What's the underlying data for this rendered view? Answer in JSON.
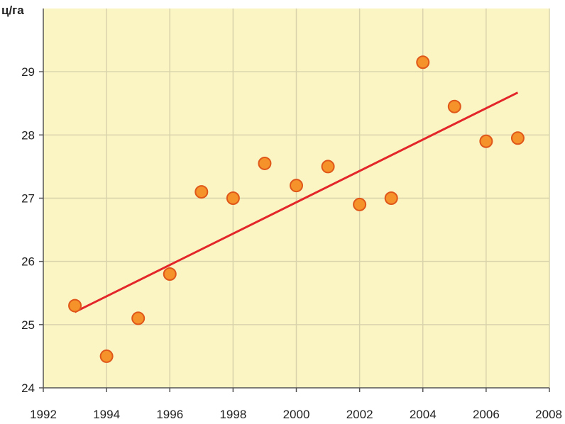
{
  "chart_data": {
    "type": "scatter",
    "title": "",
    "ylabel": "ц/га",
    "xlabel": "",
    "xlim": [
      1992,
      2008
    ],
    "ylim": [
      24,
      30
    ],
    "x_ticks": [
      1992,
      1994,
      1996,
      1998,
      2000,
      2002,
      2004,
      2006,
      2008
    ],
    "y_ticks": [
      24,
      25,
      26,
      27,
      28,
      29
    ],
    "grid": true,
    "series": [
      {
        "points": [
          {
            "x": 1993,
            "y": 25.3
          },
          {
            "x": 1994,
            "y": 24.5
          },
          {
            "x": 1995,
            "y": 25.1
          },
          {
            "x": 1996,
            "y": 25.8
          },
          {
            "x": 1997,
            "y": 27.1
          },
          {
            "x": 1998,
            "y": 27.0
          },
          {
            "x": 1999,
            "y": 27.55
          },
          {
            "x": 2000,
            "y": 27.2
          },
          {
            "x": 2001,
            "y": 27.5
          },
          {
            "x": 2002,
            "y": 26.9
          },
          {
            "x": 2003,
            "y": 27.0
          },
          {
            "x": 2004,
            "y": 29.15
          },
          {
            "x": 2005,
            "y": 28.45
          },
          {
            "x": 2006,
            "y": 27.9
          },
          {
            "x": 2007,
            "y": 27.95
          }
        ]
      }
    ],
    "trendline": {
      "x": [
        1993,
        2007
      ],
      "y": [
        25.2,
        28.67
      ]
    },
    "colors": {
      "plot_background": "#FBF5C3",
      "grid": "#D9D3AC",
      "axis": "#555555",
      "point_fill": "#F5922A",
      "point_stroke": "#E0571A",
      "trendline": "#E3262A"
    }
  }
}
